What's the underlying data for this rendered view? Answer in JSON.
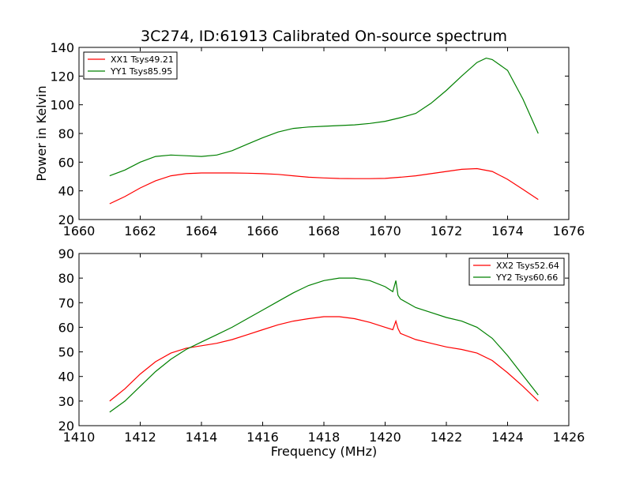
{
  "figure": {
    "title": "3C274, ID:61913 Calibrated On-source spectrum"
  },
  "chart_data": [
    {
      "type": "line",
      "title": "3C274, ID:61913 Calibrated On-source spectrum",
      "xlabel": "",
      "ylabel": "Power in Kelvin",
      "xlim": [
        1660,
        1676
      ],
      "ylim": [
        20,
        140
      ],
      "xticks": [
        "1660",
        "1662",
        "1664",
        "1666",
        "1668",
        "1670",
        "1672",
        "1674",
        "1676"
      ],
      "yticks": [
        "20",
        "40",
        "60",
        "80",
        "100",
        "120",
        "140"
      ],
      "grid": false,
      "legend_position": "top-left",
      "series": [
        {
          "name": "XX1 Tsys49.21",
          "color": "#ff0000",
          "x": [
            1661.0,
            1661.5,
            1662.0,
            1662.5,
            1663.0,
            1663.5,
            1664.0,
            1664.5,
            1665.0,
            1665.5,
            1666.0,
            1666.5,
            1667.0,
            1667.5,
            1668.0,
            1668.5,
            1669.0,
            1669.5,
            1670.0,
            1670.5,
            1671.0,
            1671.5,
            1672.0,
            1672.5,
            1673.0,
            1673.5,
            1674.0,
            1674.5,
            1675.0
          ],
          "y": [
            31,
            36,
            42,
            47,
            50.5,
            52,
            52.5,
            52.5,
            52.5,
            52.3,
            52,
            51.5,
            50.5,
            49.5,
            49,
            48.6,
            48.5,
            48.5,
            48.7,
            49.5,
            50.5,
            52,
            53.5,
            55,
            55.5,
            53.5,
            48,
            41,
            34
          ]
        },
        {
          "name": "YY1 Tsys85.95",
          "color": "#008000",
          "x": [
            1661.0,
            1661.5,
            1662.0,
            1662.5,
            1663.0,
            1663.5,
            1664.0,
            1664.5,
            1665.0,
            1665.5,
            1666.0,
            1666.5,
            1667.0,
            1667.5,
            1668.0,
            1668.5,
            1669.0,
            1669.5,
            1670.0,
            1670.5,
            1671.0,
            1671.5,
            1672.0,
            1672.5,
            1673.0,
            1673.3,
            1673.5,
            1674.0,
            1674.5,
            1675.0
          ],
          "y": [
            50.5,
            54.5,
            60,
            64,
            65,
            64.5,
            64,
            65,
            68,
            72.5,
            77,
            81,
            83.5,
            84.5,
            85,
            85.5,
            86,
            87,
            88.5,
            91,
            94,
            101,
            110,
            120,
            129.5,
            132.5,
            131.5,
            124,
            104,
            80
          ]
        }
      ]
    },
    {
      "type": "line",
      "title": "",
      "xlabel": "Frequency (MHz)",
      "ylabel": "",
      "xlim": [
        1410,
        1426
      ],
      "ylim": [
        20,
        90
      ],
      "xticks": [
        "1410",
        "1412",
        "1414",
        "1416",
        "1418",
        "1420",
        "1422",
        "1424",
        "1426"
      ],
      "yticks": [
        "20",
        "30",
        "40",
        "50",
        "60",
        "70",
        "80",
        "90"
      ],
      "grid": false,
      "legend_position": "top-right",
      "series": [
        {
          "name": "XX2 Tsys52.64",
          "color": "#ff0000",
          "x": [
            1411.0,
            1411.5,
            1412.0,
            1412.5,
            1413.0,
            1413.5,
            1414.0,
            1414.5,
            1415.0,
            1415.5,
            1416.0,
            1416.5,
            1417.0,
            1417.5,
            1418.0,
            1418.5,
            1419.0,
            1419.5,
            1420.0,
            1420.25,
            1420.35,
            1420.42,
            1420.5,
            1421.0,
            1421.5,
            1422.0,
            1422.5,
            1423.0,
            1423.5,
            1424.0,
            1424.5,
            1425.0
          ],
          "y": [
            30,
            35,
            41,
            46,
            49.5,
            51.5,
            52.5,
            53.5,
            55,
            57,
            59,
            61,
            62.5,
            63.5,
            64.3,
            64.3,
            63.5,
            62,
            60,
            59,
            62.5,
            59.5,
            57.5,
            55,
            53.5,
            52,
            51,
            49.5,
            46.5,
            41.5,
            36,
            30
          ]
        },
        {
          "name": "YY2 Tsys60.66",
          "color": "#008000",
          "x": [
            1411.0,
            1411.5,
            1412.0,
            1412.5,
            1413.0,
            1413.5,
            1414.0,
            1414.5,
            1415.0,
            1415.5,
            1416.0,
            1416.5,
            1417.0,
            1417.5,
            1418.0,
            1418.5,
            1419.0,
            1419.5,
            1420.0,
            1420.25,
            1420.35,
            1420.42,
            1420.5,
            1421.0,
            1421.5,
            1422.0,
            1422.5,
            1423.0,
            1423.5,
            1424.0,
            1424.5,
            1425.0
          ],
          "y": [
            25.5,
            30,
            36,
            42,
            47,
            51,
            54,
            57,
            60,
            63.5,
            67,
            70.5,
            74,
            77,
            79,
            80,
            80,
            79,
            76.5,
            74.5,
            79,
            73,
            71.5,
            68,
            66,
            64,
            62.5,
            60,
            55.5,
            48.5,
            40.5,
            32.5
          ]
        }
      ]
    }
  ]
}
